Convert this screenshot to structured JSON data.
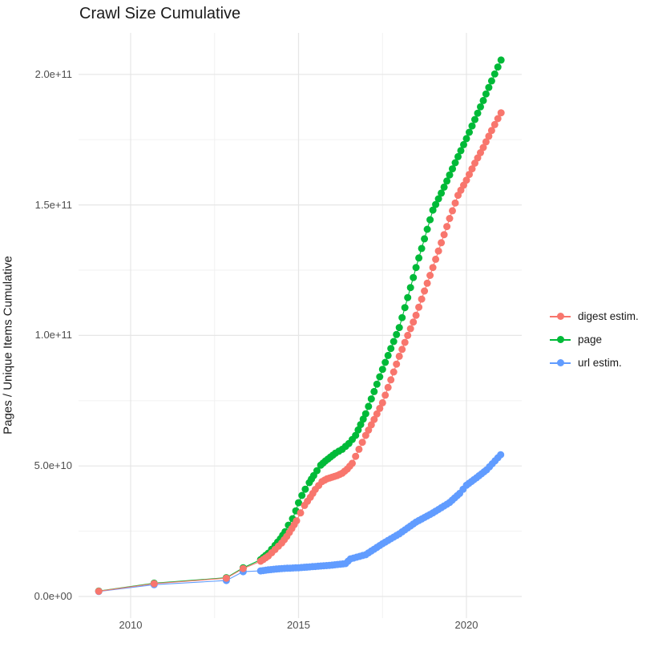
{
  "title": "Crawl Size Cumulative",
  "chart_data": {
    "type": "line",
    "title": "Crawl Size Cumulative",
    "xlabel": "",
    "ylabel": "Pages / Unique Items Cumulative",
    "value_unit": "billions (1e9) of pages / unique items, cumulative",
    "x_unit": "decimal year",
    "xlim": [
      2008.45,
      2021.65
    ],
    "ylim_billions": [
      -8,
      216
    ],
    "grid": "major+minor, light gray on white, no axis lines",
    "legend_position": "right-center",
    "xticks": [
      {
        "value": 2010,
        "label": "2010"
      },
      {
        "value": 2015,
        "label": "2015"
      },
      {
        "value": 2020,
        "label": "2020"
      }
    ],
    "x_minor_ticks": [
      2012.5,
      2017.5
    ],
    "yticks": [
      {
        "value_billions": 0,
        "label": "0.0e+00"
      },
      {
        "value_billions": 50,
        "label": "5.0e+10"
      },
      {
        "value_billions": 100,
        "label": "1.0e+11"
      },
      {
        "value_billions": 150,
        "label": "1.5e+11"
      },
      {
        "value_billions": 200,
        "label": "2.0e+11"
      }
    ],
    "y_minor_ticks_billions": [
      25,
      75,
      125,
      175
    ],
    "series": [
      {
        "name": "digest estim.",
        "color": "#F8766D",
        "points_year_billions": [
          [
            2009.05,
            2.0
          ],
          [
            2010.7,
            4.9
          ],
          [
            2012.85,
            7.0
          ],
          [
            2013.35,
            10.7
          ],
          [
            2013.87,
            13.5
          ],
          [
            2014.1,
            15.5
          ],
          [
            2014.3,
            18.0
          ],
          [
            2014.5,
            20.5
          ],
          [
            2014.65,
            23.0
          ],
          [
            2014.8,
            26.0
          ],
          [
            2014.94,
            29.0
          ],
          [
            2015.06,
            32.0
          ],
          [
            2015.18,
            34.9
          ],
          [
            2015.35,
            38.0
          ],
          [
            2015.5,
            41.0
          ],
          [
            2015.7,
            44.0
          ],
          [
            2015.85,
            45.1
          ],
          [
            2016.0,
            45.7
          ],
          [
            2016.15,
            46.3
          ],
          [
            2016.3,
            47.2
          ],
          [
            2016.45,
            48.8
          ],
          [
            2016.6,
            51.0
          ],
          [
            2016.8,
            56.4
          ],
          [
            2017.0,
            61.7
          ],
          [
            2017.25,
            67.8
          ],
          [
            2017.5,
            74.2
          ],
          [
            2017.75,
            83.0
          ],
          [
            2018.0,
            92.0
          ],
          [
            2018.25,
            100.0
          ],
          [
            2018.5,
            107.7
          ],
          [
            2018.75,
            117.0
          ],
          [
            2019.0,
            126.0
          ],
          [
            2019.25,
            135.5
          ],
          [
            2019.5,
            144.8
          ],
          [
            2019.75,
            153.7
          ],
          [
            2020.0,
            159.5
          ],
          [
            2020.25,
            166.0
          ],
          [
            2020.5,
            172.0
          ],
          [
            2020.75,
            178.5
          ],
          [
            2021.03,
            185.3
          ]
        ]
      },
      {
        "name": "page",
        "color": "#00BA38",
        "points_year_billions": [
          [
            2009.05,
            2.1
          ],
          [
            2010.7,
            5.1
          ],
          [
            2012.85,
            7.2
          ],
          [
            2013.35,
            11.0
          ],
          [
            2013.87,
            14.1
          ],
          [
            2014.1,
            16.6
          ],
          [
            2014.3,
            19.6
          ],
          [
            2014.46,
            22.1
          ],
          [
            2014.6,
            24.8
          ],
          [
            2014.7,
            27.3
          ],
          [
            2014.82,
            29.8
          ],
          [
            2014.92,
            32.8
          ],
          [
            2015.0,
            35.9
          ],
          [
            2015.1,
            38.7
          ],
          [
            2015.2,
            41.1
          ],
          [
            2015.32,
            43.6
          ],
          [
            2015.45,
            46.3
          ],
          [
            2015.55,
            48.2
          ],
          [
            2015.66,
            50.3
          ],
          [
            2015.8,
            51.9
          ],
          [
            2015.95,
            53.4
          ],
          [
            2016.1,
            54.9
          ],
          [
            2016.3,
            56.4
          ],
          [
            2016.5,
            58.6
          ],
          [
            2016.7,
            61.7
          ],
          [
            2017.0,
            70.0
          ],
          [
            2017.25,
            78.5
          ],
          [
            2017.5,
            87.0
          ],
          [
            2017.75,
            95.0
          ],
          [
            2018.0,
            103.0
          ],
          [
            2018.25,
            114.5
          ],
          [
            2018.5,
            126.0
          ],
          [
            2018.75,
            137.0
          ],
          [
            2019.0,
            148.0
          ],
          [
            2019.25,
            154.5
          ],
          [
            2019.5,
            161.5
          ],
          [
            2019.75,
            168.5
          ],
          [
            2020.0,
            175.4
          ],
          [
            2020.25,
            182.7
          ],
          [
            2020.5,
            190.0
          ],
          [
            2020.75,
            197.5
          ],
          [
            2021.03,
            205.5
          ]
        ]
      },
      {
        "name": "url estim.",
        "color": "#619CFF",
        "points_year_billions": [
          [
            2009.05,
            1.9
          ],
          [
            2010.7,
            4.5
          ],
          [
            2012.85,
            6.1
          ],
          [
            2013.35,
            9.5
          ],
          [
            2013.87,
            9.8
          ],
          [
            2014.1,
            10.2
          ],
          [
            2014.5,
            10.7
          ],
          [
            2015.0,
            11.0
          ],
          [
            2015.5,
            11.5
          ],
          [
            2016.0,
            12.0
          ],
          [
            2016.4,
            12.6
          ],
          [
            2016.55,
            14.4
          ],
          [
            2017.0,
            16.0
          ],
          [
            2017.5,
            20.2
          ],
          [
            2018.0,
            24.0
          ],
          [
            2018.5,
            28.5
          ],
          [
            2019.0,
            32.0
          ],
          [
            2019.5,
            36.0
          ],
          [
            2019.8,
            39.5
          ],
          [
            2020.0,
            42.6
          ],
          [
            2020.3,
            45.5
          ],
          [
            2020.6,
            48.5
          ],
          [
            2021.02,
            54.3
          ]
        ]
      }
    ]
  },
  "colors": {
    "background": "#FFFFFF",
    "grid_major": "#E6E6E6",
    "grid_minor": "#F0F0F0",
    "tick_text": "#4D4D4D",
    "title_text": "#1A1A1A"
  }
}
